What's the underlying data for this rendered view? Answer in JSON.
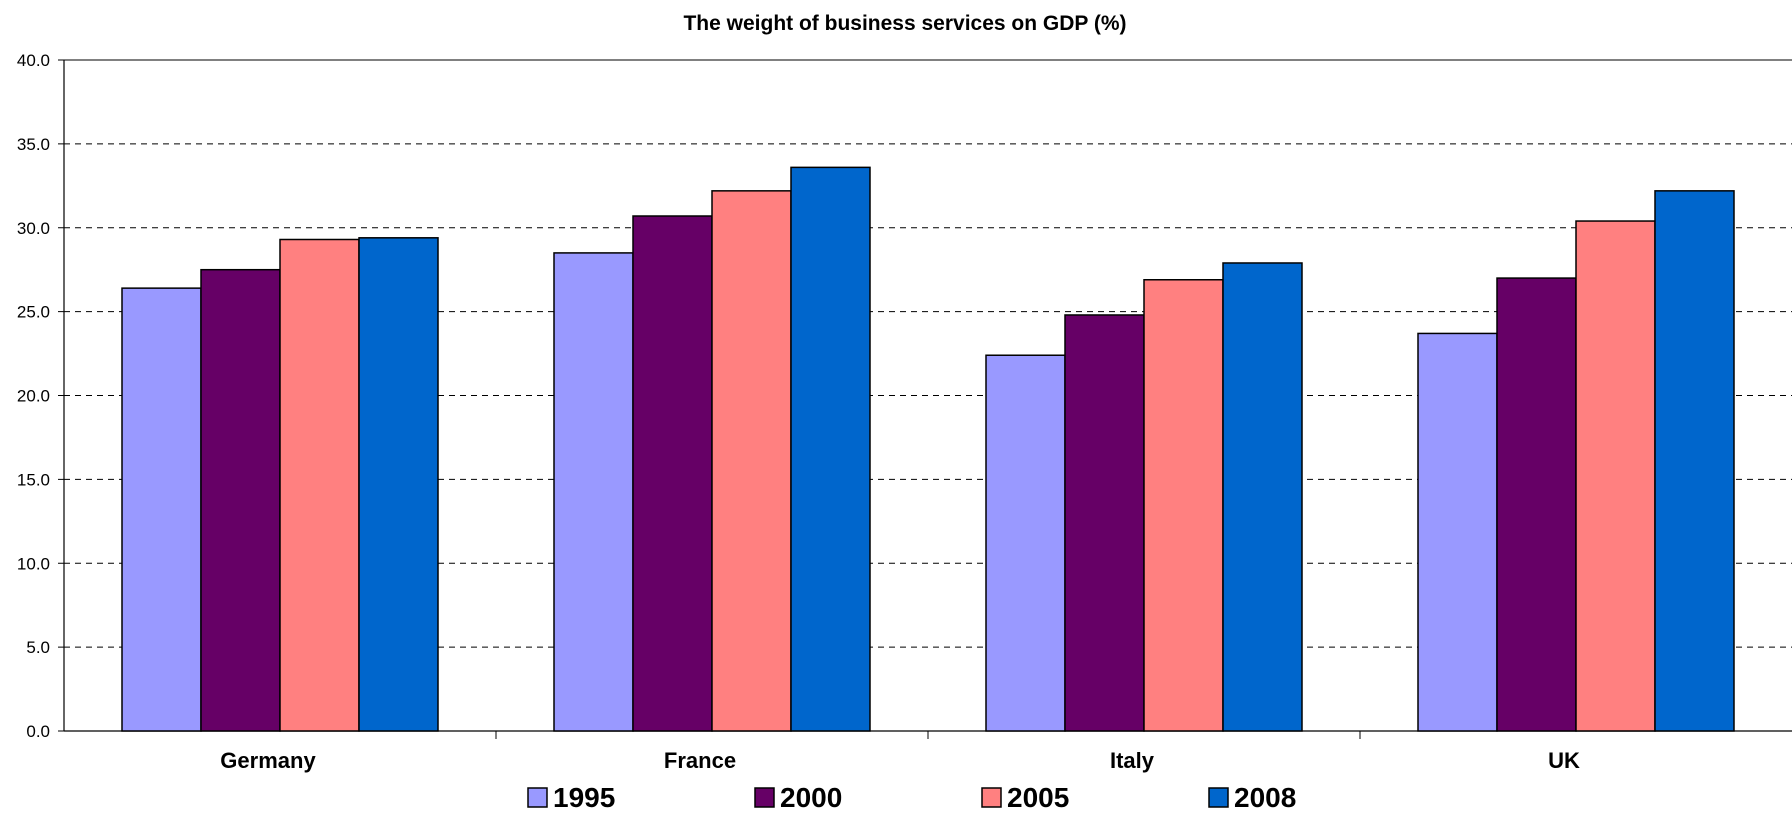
{
  "chart_data": {
    "type": "bar",
    "title": "The weight of business services on GDP (%)",
    "xlabel": "",
    "ylabel": "",
    "categories": [
      "Germany",
      "France",
      "Italy",
      "UK"
    ],
    "series": [
      {
        "name": "1995",
        "color": "#9999FF",
        "values": [
          26.4,
          28.5,
          22.4,
          23.7
        ]
      },
      {
        "name": "2000",
        "color": "#660066",
        "values": [
          27.5,
          30.7,
          24.8,
          27.0
        ]
      },
      {
        "name": "2005",
        "color": "#FF8080",
        "values": [
          29.3,
          32.2,
          26.9,
          30.4
        ]
      },
      {
        "name": "2008",
        "color": "#0066CC",
        "values": [
          29.4,
          33.6,
          27.9,
          32.2
        ]
      }
    ],
    "ylim": [
      0,
      40
    ],
    "yticks": [
      "0.0",
      "5.0",
      "10.0",
      "15.0",
      "20.0",
      "25.0",
      "30.0",
      "35.0",
      "40.0"
    ],
    "grid": "dashed horizontal",
    "legend_position": "bottom"
  }
}
